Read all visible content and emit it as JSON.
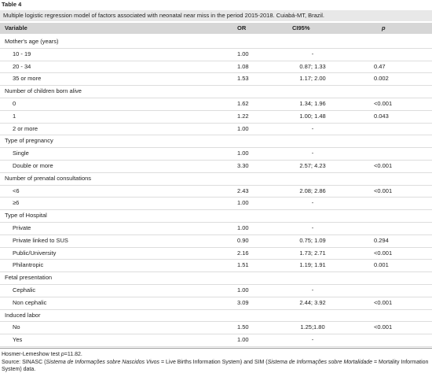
{
  "table_label": "Table 4",
  "caption": "Multiple logistic regression model of factors associated with neonatal near miss in the period 2015-2018. Cuiabá-MT, Brazil.",
  "header": [
    "Variable",
    "OR",
    "CI95%",
    "p"
  ],
  "groups": [
    {
      "label": "Mother's age (years)",
      "rows": [
        {
          "label": "10 - 19",
          "or": "1.00",
          "ci": "-"
        },
        {
          "label": "20 - 34",
          "or": "1.08",
          "ci": "0.87; 1.33",
          "p": "0.47"
        },
        {
          "label": "35 or more",
          "or": "1.53",
          "ci": "1.17; 2.00",
          "p": "0.002"
        }
      ]
    },
    {
      "label": "Number of children born alive",
      "rows": [
        {
          "label": "0",
          "or": "1.62",
          "ci": "1.34; 1.96",
          "p": "<0.001"
        },
        {
          "label": "1",
          "or": "1.22",
          "ci": "1.00; 1.48",
          "p": "0.043"
        },
        {
          "label": "2 or more",
          "or": "1.00",
          "ci": "-"
        }
      ]
    },
    {
      "label": "Type of pregnancy",
      "rows": [
        {
          "label": "Single",
          "or": "1.00",
          "ci": "-"
        },
        {
          "label": "Double or more",
          "or": "3.30",
          "ci": "2.57; 4.23",
          "p": "<0.001"
        }
      ]
    },
    {
      "label": "Number of prenatal consultations",
      "rows": [
        {
          "label": "<6",
          "or": "2.43",
          "ci": "2.08; 2.86",
          "p": "<0.001"
        },
        {
          "label": "≥6",
          "or": "1.00",
          "ci": "-"
        }
      ]
    },
    {
      "label": "Type of Hospital",
      "rows": [
        {
          "label": "Private",
          "or": "1.00",
          "ci": "-"
        },
        {
          "label": "Private linked to SUS",
          "or": "0.90",
          "ci": "0.75; 1.09",
          "p": "0.294"
        },
        {
          "label": "Public/University",
          "or": "2.16",
          "ci": "1.73; 2.71",
          "p": "<0.001"
        },
        {
          "label": "Philantropic",
          "or": "1.51",
          "ci": "1.19; 1.91",
          "p": "0.001"
        }
      ]
    },
    {
      "label": "Fetal presentation",
      "rows": [
        {
          "label": "Cephalic",
          "or": "1.00",
          "ci": "-"
        },
        {
          "label": "Non cephalic",
          "or": "3.09",
          "ci": "2.44; 3.92",
          "p": "<0.001"
        }
      ]
    },
    {
      "label": "Induced labor",
      "rows": [
        {
          "label": "No",
          "or": "1.50",
          "ci": "1.25;1.80",
          "p": "<0.001"
        },
        {
          "label": "Yes",
          "or": "1.00",
          "ci": "-"
        }
      ]
    }
  ],
  "notes": [
    [
      {
        "text": "Hosmer-Lemeshow test "
      },
      {
        "text": "p",
        "italic": true
      },
      {
        "text": "=11.82."
      }
    ],
    [
      {
        "text": "Source: SINASC ("
      },
      {
        "text": "Sistema de Informações sobre Nascidos Vivos",
        "italic": true
      },
      {
        "text": " = Live Births Information System) and SIM ("
      },
      {
        "text": "Sistema de Informações sobre Mortalidade",
        "italic": true
      },
      {
        "text": " = Mortality Information System) data."
      }
    ]
  ]
}
